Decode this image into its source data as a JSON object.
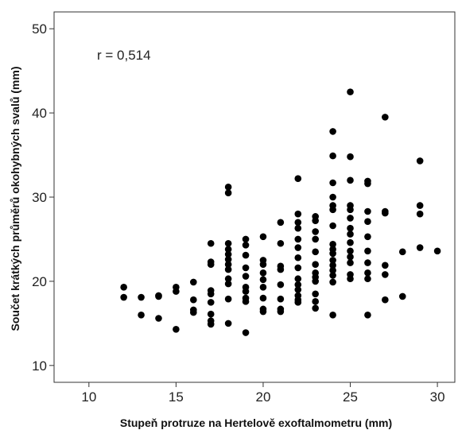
{
  "chart_data": {
    "type": "scatter",
    "title": "",
    "xlabel": "Stupeň protruze na Hertelově exoftalmometru (mm)",
    "ylabel": "Součet krátkých průměrů okohybných svalů (mm)",
    "xlim": [
      8,
      31
    ],
    "ylim": [
      8,
      52
    ],
    "xticks": [
      "10",
      "15",
      "20",
      "25",
      "30"
    ],
    "yticks": [
      "10",
      "20",
      "30",
      "40",
      "50"
    ],
    "annotation": "r = 0,514",
    "grid": false,
    "legend": "none",
    "marker_color": "#000000",
    "points": [
      [
        12,
        19.3
      ],
      [
        12,
        18.1
      ],
      [
        13,
        18.1
      ],
      [
        13,
        16.0
      ],
      [
        14,
        18.3
      ],
      [
        14,
        18.2
      ],
      [
        14,
        15.6
      ],
      [
        15,
        19.3
      ],
      [
        15,
        18.8
      ],
      [
        15,
        14.3
      ],
      [
        16,
        19.9
      ],
      [
        16,
        17.8
      ],
      [
        16,
        16.6
      ],
      [
        16,
        16.3
      ],
      [
        17,
        24.5
      ],
      [
        17,
        22.3
      ],
      [
        17,
        22.0
      ],
      [
        17,
        18.9
      ],
      [
        17,
        18.5
      ],
      [
        17,
        17.5
      ],
      [
        17,
        16.1
      ],
      [
        17,
        15.3
      ],
      [
        17,
        14.9
      ],
      [
        18,
        31.2
      ],
      [
        18,
        30.5
      ],
      [
        18,
        24.5
      ],
      [
        18,
        23.8
      ],
      [
        18,
        23.2
      ],
      [
        18,
        22.6
      ],
      [
        18,
        22.0
      ],
      [
        18,
        21.4
      ],
      [
        18,
        20.3
      ],
      [
        18,
        19.7
      ],
      [
        18,
        17.9
      ],
      [
        18,
        15.0
      ],
      [
        19,
        25.0
      ],
      [
        19,
        24.3
      ],
      [
        19,
        23.1
      ],
      [
        19,
        21.6
      ],
      [
        19,
        20.6
      ],
      [
        19,
        19.3
      ],
      [
        19,
        18.8
      ],
      [
        19,
        18.0
      ],
      [
        19,
        17.6
      ],
      [
        19,
        13.9
      ],
      [
        20,
        25.3
      ],
      [
        20,
        22.5
      ],
      [
        20,
        22.0
      ],
      [
        20,
        21.0
      ],
      [
        20,
        20.2
      ],
      [
        20,
        19.3
      ],
      [
        20,
        18.0
      ],
      [
        20,
        16.7
      ],
      [
        20,
        16.4
      ],
      [
        21,
        27.0
      ],
      [
        21,
        24.5
      ],
      [
        21,
        21.8
      ],
      [
        21,
        21.4
      ],
      [
        21,
        19.6
      ],
      [
        21,
        17.9
      ],
      [
        21,
        16.7
      ],
      [
        21,
        16.4
      ],
      [
        22,
        32.2
      ],
      [
        22,
        28.0
      ],
      [
        22,
        27.0
      ],
      [
        22,
        26.3
      ],
      [
        22,
        25.0
      ],
      [
        22,
        24.0
      ],
      [
        22,
        22.8
      ],
      [
        22,
        21.6
      ],
      [
        22,
        20.3
      ],
      [
        22,
        19.6
      ],
      [
        22,
        19.0
      ],
      [
        22,
        18.3
      ],
      [
        22,
        17.8
      ],
      [
        22,
        17.5
      ],
      [
        23,
        27.7
      ],
      [
        23,
        27.2
      ],
      [
        23,
        25.9
      ],
      [
        23,
        25.0
      ],
      [
        23,
        23.5
      ],
      [
        23,
        22.0
      ],
      [
        23,
        21.0
      ],
      [
        23,
        20.5
      ],
      [
        23,
        20.0
      ],
      [
        23,
        18.5
      ],
      [
        23,
        17.6
      ],
      [
        23,
        16.8
      ],
      [
        24,
        37.8
      ],
      [
        24,
        34.9
      ],
      [
        24,
        31.7
      ],
      [
        24,
        30.0
      ],
      [
        24,
        29.0
      ],
      [
        24,
        28.5
      ],
      [
        24,
        26.6
      ],
      [
        24,
        24.4
      ],
      [
        24,
        23.8
      ],
      [
        24,
        23.3
      ],
      [
        24,
        22.5
      ],
      [
        24,
        21.9
      ],
      [
        24,
        21.3
      ],
      [
        24,
        20.7
      ],
      [
        24,
        19.9
      ],
      [
        24,
        16.0
      ],
      [
        25,
        42.5
      ],
      [
        25,
        34.8
      ],
      [
        25,
        32.0
      ],
      [
        25,
        29.0
      ],
      [
        25,
        28.5
      ],
      [
        25,
        27.5
      ],
      [
        25,
        26.3
      ],
      [
        25,
        25.6
      ],
      [
        25,
        24.6
      ],
      [
        25,
        23.6
      ],
      [
        25,
        22.9
      ],
      [
        25,
        22.2
      ],
      [
        25,
        20.8
      ],
      [
        25,
        20.3
      ],
      [
        26,
        31.9
      ],
      [
        26,
        31.6
      ],
      [
        26,
        28.3
      ],
      [
        26,
        27.1
      ],
      [
        26,
        25.3
      ],
      [
        26,
        23.6
      ],
      [
        26,
        22.2
      ],
      [
        26,
        21.0
      ],
      [
        26,
        20.3
      ],
      [
        26,
        16.0
      ],
      [
        27,
        39.5
      ],
      [
        27,
        28.3
      ],
      [
        27,
        28.1
      ],
      [
        27,
        21.9
      ],
      [
        27,
        20.8
      ],
      [
        27,
        17.8
      ],
      [
        28,
        23.5
      ],
      [
        28,
        18.2
      ],
      [
        29,
        34.3
      ],
      [
        29,
        29.0
      ],
      [
        29,
        28.0
      ],
      [
        29,
        24.0
      ],
      [
        30,
        23.6
      ]
    ]
  }
}
